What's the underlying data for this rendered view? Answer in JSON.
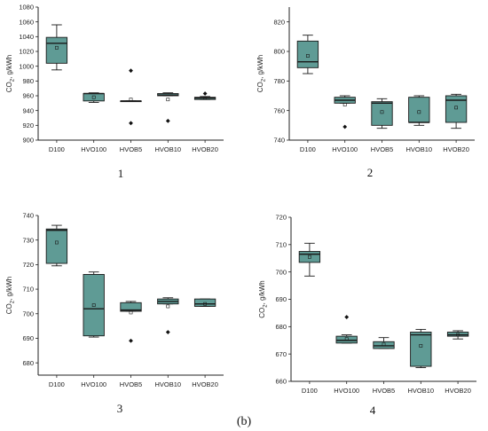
{
  "figure": {
    "caption": "(b)",
    "box_color": "#5f9b95",
    "edge_color": "#1a1a1a"
  },
  "chart_data": [
    {
      "type": "box",
      "panel_label": "1",
      "ylabel_main": "CO",
      "ylabel_sub": "2",
      "ylabel_rest": ", g/kWh",
      "categories": [
        "D100",
        "HVO100",
        "HVOB5",
        "HVOB10",
        "HVOB20"
      ],
      "ylim": [
        900,
        1080
      ],
      "yticks": [
        "900",
        "920",
        "940",
        "960",
        "980",
        "1000",
        "1020",
        "1040",
        "1060",
        "1080"
      ],
      "boxes": [
        {
          "min": 995,
          "q1": 1004,
          "median": 1031,
          "q3": 1039,
          "max": 1056,
          "mean": 1025,
          "outliers": []
        },
        {
          "min": 951,
          "q1": 953,
          "median": 963,
          "q3": 963,
          "max": 964,
          "mean": 958,
          "outliers": []
        },
        {
          "min": 953,
          "q1": 953,
          "median": 953,
          "q3": 953,
          "max": 953,
          "mean": 955,
          "outliers": [
            994,
            923
          ]
        },
        {
          "min": 960,
          "q1": 960,
          "median": 961,
          "q3": 963,
          "max": 964,
          "mean": 955,
          "outliers": [
            926
          ]
        },
        {
          "min": 955,
          "q1": 955,
          "median": 957,
          "q3": 958,
          "max": 959,
          "mean": 957,
          "outliers": [
            963
          ]
        }
      ]
    },
    {
      "type": "box",
      "panel_label": "2",
      "ylabel_main": "CO",
      "ylabel_sub": "2",
      "ylabel_rest": ", g/kWh",
      "categories": [
        "D100",
        "HVO100",
        "HVOB5",
        "HVOB10",
        "HVOB20"
      ],
      "ylim": [
        740,
        830
      ],
      "yticks": [
        "740",
        "760",
        "780",
        "800",
        "820"
      ],
      "boxes": [
        {
          "min": 785,
          "q1": 789,
          "median": 793,
          "q3": 807,
          "max": 811,
          "mean": 797,
          "outliers": []
        },
        {
          "min": 765,
          "q1": 765,
          "median": 767,
          "q3": 769,
          "max": 770,
          "mean": 764,
          "outliers": [
            749
          ]
        },
        {
          "min": 748,
          "q1": 750,
          "median": 765,
          "q3": 766,
          "max": 768,
          "mean": 759,
          "outliers": []
        },
        {
          "min": 750,
          "q1": 752,
          "median": 752,
          "q3": 769,
          "max": 770,
          "mean": 759,
          "outliers": []
        },
        {
          "min": 748,
          "q1": 752,
          "median": 767,
          "q3": 770,
          "max": 771,
          "mean": 762,
          "outliers": []
        }
      ]
    },
    {
      "type": "box",
      "panel_label": "3",
      "ylabel_main": "CO",
      "ylabel_sub": "2",
      "ylabel_rest": ", g/kWh",
      "categories": [
        "D100",
        "HVO100",
        "HVOB5",
        "HVOB10",
        "HVOB20"
      ],
      "ylim": [
        675,
        740
      ],
      "yticks": [
        "680",
        "690",
        "700",
        "710",
        "720",
        "730",
        "740"
      ],
      "boxes": [
        {
          "min": 719.5,
          "q1": 720.5,
          "median": 734,
          "q3": 734.5,
          "max": 736,
          "mean": 729,
          "outliers": []
        },
        {
          "min": 690.5,
          "q1": 691,
          "median": 702,
          "q3": 716,
          "max": 717,
          "mean": 703.5,
          "outliers": []
        },
        {
          "min": 701,
          "q1": 701,
          "median": 701.5,
          "q3": 704.5,
          "max": 705,
          "mean": 700.5,
          "outliers": [
            689
          ]
        },
        {
          "min": 704,
          "q1": 704,
          "median": 705,
          "q3": 706,
          "max": 706.5,
          "mean": 703,
          "outliers": [
            692.5
          ]
        },
        {
          "min": 703,
          "q1": 703,
          "median": 704,
          "q3": 706,
          "max": 706,
          "mean": 704,
          "outliers": []
        }
      ]
    },
    {
      "type": "box",
      "panel_label": "4",
      "ylabel_main": "CO",
      "ylabel_sub": "2",
      "ylabel_rest": ", g/kWh",
      "categories": [
        "D100",
        "HVO100",
        "HVOB5",
        "HVOB10",
        "HVOB20"
      ],
      "ylim": [
        660,
        720
      ],
      "yticks": [
        "660",
        "670",
        "680",
        "690",
        "700",
        "710",
        "720"
      ],
      "boxes": [
        {
          "min": 698.5,
          "q1": 703.5,
          "median": 706.5,
          "q3": 707.5,
          "max": 710.5,
          "mean": 705.5,
          "outliers": []
        },
        {
          "min": 674,
          "q1": 674,
          "median": 675,
          "q3": 676.5,
          "max": 677,
          "mean": 675.5,
          "outliers": [
            683.5
          ]
        },
        {
          "min": 672,
          "q1": 672,
          "median": 673,
          "q3": 674.5,
          "max": 676,
          "mean": 673.5,
          "outliers": []
        },
        {
          "min": 665,
          "q1": 665.5,
          "median": 677,
          "q3": 678,
          "max": 679,
          "mean": 673,
          "outliers": []
        },
        {
          "min": 675.5,
          "q1": 676.5,
          "median": 677,
          "q3": 678,
          "max": 678.5,
          "mean": 677,
          "outliers": []
        }
      ]
    }
  ]
}
